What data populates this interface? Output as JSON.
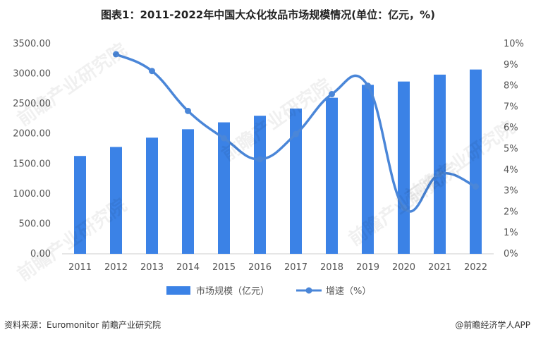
{
  "title": "图表1：2011-2022年中国大众化妆品市场规模情况(单位：亿元，%)",
  "footer": {
    "source": "资料来源：Euromonitor 前瞻产业研究院",
    "brand": "@前瞻经济学人APP"
  },
  "watermark": "前瞻产业研究院",
  "colors": {
    "bar": "#3b82e6",
    "line": "#4a86d8",
    "axis": "#cccccc"
  },
  "chart_data": {
    "type": "bar",
    "categories": [
      "2011",
      "2012",
      "2013",
      "2014",
      "2015",
      "2016",
      "2017",
      "2018",
      "2019",
      "2020",
      "2021",
      "2022"
    ],
    "series": [
      {
        "name": "市场规模（亿元）",
        "type": "bar",
        "axis": "left",
        "values": [
          1630,
          1780,
          1935,
          2075,
          2190,
          2300,
          2420,
          2600,
          2815,
          2870,
          2985,
          3070
        ]
      },
      {
        "name": "增速（%）",
        "type": "line",
        "axis": "right",
        "values": [
          null,
          9.5,
          8.7,
          6.8,
          5.5,
          4.5,
          5.7,
          7.6,
          8.0,
          2.2,
          3.8,
          3.2
        ]
      }
    ],
    "y_left": {
      "ylim": [
        0,
        3500
      ],
      "ticks": [
        "0.00",
        "500.00",
        "1000.00",
        "1500.00",
        "2000.00",
        "2500.00",
        "3000.00",
        "3500.00"
      ]
    },
    "y_right": {
      "ylim": [
        0,
        10
      ],
      "ticks": [
        "0%",
        "1%",
        "2%",
        "3%",
        "4%",
        "5%",
        "6%",
        "7%",
        "8%",
        "9%",
        "10%"
      ]
    },
    "legend_position": "bottom",
    "grid": false
  }
}
